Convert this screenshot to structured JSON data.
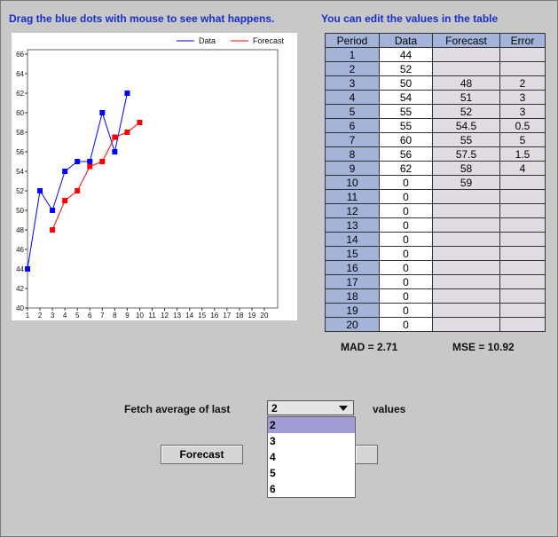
{
  "hints": {
    "left": "Drag the blue dots with mouse to see what happens.",
    "right": "You can edit the values in the table"
  },
  "chart_data": {
    "type": "line",
    "x": [
      1,
      2,
      3,
      4,
      5,
      6,
      7,
      8,
      9,
      10
    ],
    "series": [
      {
        "name": "Data",
        "color": "#0000ff",
        "x": [
          1,
          2,
          3,
          4,
          5,
          6,
          7,
          8,
          9
        ],
        "values": [
          44,
          52,
          50,
          54,
          55,
          55,
          60,
          56,
          62
        ]
      },
      {
        "name": "Forecast",
        "color": "#ff0000",
        "x": [
          3,
          4,
          5,
          6,
          7,
          8,
          9,
          10
        ],
        "values": [
          48,
          51,
          52,
          54.5,
          55,
          57.5,
          58,
          59
        ]
      }
    ],
    "xlim": [
      1,
      20
    ],
    "ylim": [
      40,
      66
    ],
    "xticks": [
      "1",
      "2",
      "3",
      "4",
      "5",
      "6",
      "7",
      "8",
      "9",
      "10",
      "11",
      "12",
      "13",
      "14",
      "15",
      "16",
      "17",
      "18",
      "19",
      "20"
    ],
    "yticks": [
      "40",
      "42",
      "44",
      "46",
      "48",
      "50",
      "52",
      "54",
      "56",
      "58",
      "60",
      "62",
      "64",
      "66"
    ],
    "legend": "top-right",
    "grid": false
  },
  "table": {
    "headers": [
      "Period",
      "Data",
      "Forecast",
      "Error"
    ],
    "rows": [
      [
        "1",
        "44",
        "",
        ""
      ],
      [
        "2",
        "52",
        "",
        ""
      ],
      [
        "3",
        "50",
        "48",
        "2"
      ],
      [
        "4",
        "54",
        "51",
        "3"
      ],
      [
        "5",
        "55",
        "52",
        "3"
      ],
      [
        "6",
        "55",
        "54.5",
        "0.5"
      ],
      [
        "7",
        "60",
        "55",
        "5"
      ],
      [
        "8",
        "56",
        "57.5",
        "1.5"
      ],
      [
        "9",
        "62",
        "58",
        "4"
      ],
      [
        "10",
        "0",
        "59",
        ""
      ],
      [
        "11",
        "0",
        "",
        ""
      ],
      [
        "12",
        "0",
        "",
        ""
      ],
      [
        "13",
        "0",
        "",
        ""
      ],
      [
        "14",
        "0",
        "",
        ""
      ],
      [
        "15",
        "0",
        "",
        ""
      ],
      [
        "16",
        "0",
        "",
        ""
      ],
      [
        "17",
        "0",
        "",
        ""
      ],
      [
        "18",
        "0",
        "",
        ""
      ],
      [
        "19",
        "0",
        "",
        ""
      ],
      [
        "20",
        "0",
        "",
        ""
      ]
    ]
  },
  "metrics": {
    "mad": "MAD = 2.71",
    "mse": "MSE = 10.92"
  },
  "controls": {
    "fetch_label": "Fetch average of last",
    "values_label": "values",
    "select_value": "2",
    "options": [
      "2",
      "3",
      "4",
      "5",
      "6"
    ],
    "selected_option": "2",
    "forecast_button": "Forecast"
  }
}
